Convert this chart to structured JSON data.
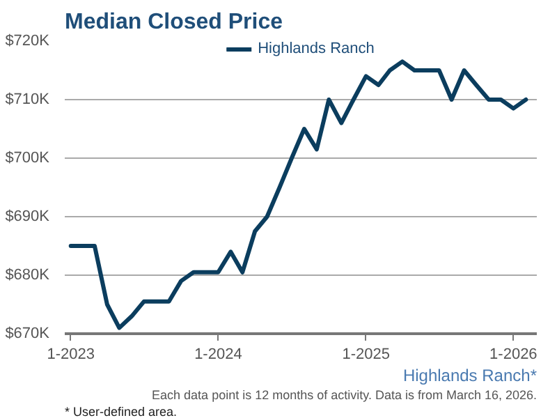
{
  "chart_data": {
    "type": "line",
    "title": "Median Closed Price",
    "x": [
      "2023-01",
      "2023-02",
      "2023-03",
      "2023-04",
      "2023-05",
      "2023-06",
      "2023-07",
      "2023-08",
      "2023-09",
      "2023-10",
      "2023-11",
      "2023-12",
      "2024-01",
      "2024-02",
      "2024-03",
      "2024-04",
      "2024-05",
      "2024-06",
      "2024-07",
      "2024-08",
      "2024-09",
      "2024-10",
      "2024-11",
      "2024-12",
      "2025-01",
      "2025-02",
      "2025-03",
      "2025-04",
      "2025-05",
      "2025-06",
      "2025-07",
      "2025-08",
      "2025-09",
      "2025-10",
      "2025-11",
      "2025-12",
      "2026-01",
      "2026-02"
    ],
    "series": [
      {
        "name": "Highlands Ranch",
        "color": "#0b3d5e",
        "values": [
          685,
          685,
          685,
          675,
          671,
          673,
          675.5,
          675.5,
          675.5,
          679,
          680.5,
          680.5,
          680.5,
          684,
          680.5,
          687.5,
          690,
          695,
          700,
          705,
          701.5,
          710,
          706,
          710,
          714,
          712.5,
          715,
          716.5,
          715,
          715,
          715,
          710,
          715,
          712.5,
          710,
          710,
          708.5,
          710
        ]
      }
    ],
    "xlim": [
      "2022-12-17",
      "2026-02-28"
    ],
    "xticks": [
      {
        "value": "2023-01",
        "label": "1-2023"
      },
      {
        "value": "2024-01",
        "label": "1-2024"
      },
      {
        "value": "2025-01",
        "label": "1-2025"
      },
      {
        "value": "2026-01",
        "label": "1-2026"
      }
    ],
    "ylim": [
      670,
      720
    ],
    "yticks": [
      {
        "value": 670,
        "label": "$670K"
      },
      {
        "value": 680,
        "label": "$680K"
      },
      {
        "value": 690,
        "label": "$690K"
      },
      {
        "value": 700,
        "label": "$700K"
      },
      {
        "value": 710,
        "label": "$710K"
      },
      {
        "value": 720,
        "label": "$720K"
      }
    ],
    "grid": "y",
    "legend": "top",
    "marker": "none",
    "line_style": "solid",
    "annotations": [
      "Highlands Ranch*",
      "Each data point is 12 months of activity. Data is from March 16, 2026.",
      "* User-defined area."
    ]
  }
}
